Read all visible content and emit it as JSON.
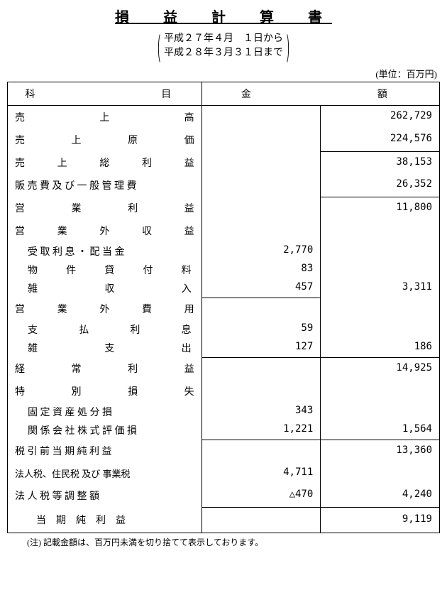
{
  "title": "損　益　計　算　書",
  "period_from": "平成２７年４月　１日から",
  "period_to": "平成２８年３月３１日まで",
  "unit": "(単位：百万円)",
  "header_item": "科　　　　　目",
  "header_amount": "金　　　　　額",
  "rows": {
    "uriage": {
      "c": [
        "売",
        "上",
        "高"
      ],
      "v": "262,729"
    },
    "genka": {
      "c": [
        "売",
        "上",
        "原",
        "価"
      ],
      "v": "224,576"
    },
    "soshi": {
      "c": [
        "売",
        "上",
        "総",
        "利",
        "益"
      ],
      "v": "38,153"
    },
    "hanbai": {
      "label": "販 売 費 及 び 一 般 管 理 費",
      "v": "26,352"
    },
    "eigyo_rieki": {
      "c": [
        "営",
        "業",
        "利",
        "益"
      ],
      "v": "11,800"
    },
    "eigyogai_shueki": {
      "c": [
        "営",
        "業",
        "外",
        "収",
        "益"
      ]
    },
    "uketori": {
      "label": "受 取 利 息 ・ 配 当 金",
      "m": "2,770"
    },
    "bukken": {
      "c": [
        "物",
        "件",
        "貸",
        "付",
        "料"
      ],
      "m": "83"
    },
    "zasshu": {
      "c": [
        "雑",
        "収",
        "入"
      ],
      "m": "457",
      "v": "3,311"
    },
    "eigyogai_hiyo": {
      "c": [
        "営",
        "業",
        "外",
        "費",
        "用"
      ]
    },
    "shiharai": {
      "c": [
        "支",
        "払",
        "利",
        "息"
      ],
      "m": "59"
    },
    "zasshi": {
      "c": [
        "雑",
        "支",
        "出"
      ],
      "m": "127",
      "v": "186"
    },
    "keijo": {
      "c": [
        "経",
        "常",
        "利",
        "益"
      ],
      "v": "14,925"
    },
    "tokubetsu": {
      "c": [
        "特",
        "別",
        "損",
        "失"
      ]
    },
    "kotei": {
      "label": "固 定 資 産 処 分 損",
      "m": "343"
    },
    "kankei": {
      "label": "関 係 会 社 株 式 評 価 損",
      "m": "1,221",
      "v": "1,564"
    },
    "zeibiki": {
      "label": "税 引 前 当 期 純 利 益",
      "v": "13,360"
    },
    "hojin": {
      "label": "法人税、住民税 及び 事業税",
      "m": "4,711"
    },
    "hojin_chosei": {
      "label": "法 人 税 等 調 整 額",
      "m": "△470",
      "v": "4,240"
    },
    "toki": {
      "label": "当　期　純　利　益",
      "v": "9,119"
    }
  },
  "footnote": "(注) 記載金額は、百万円未満を切り捨てて表示しております。"
}
